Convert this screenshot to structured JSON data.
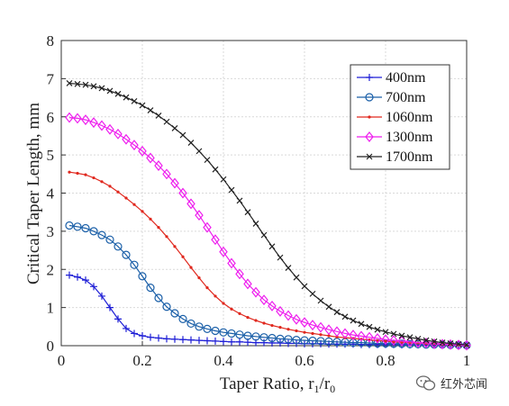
{
  "chart_data": {
    "type": "line",
    "title": "",
    "xlabel": "Taper Ratio, r",
    "xlabel_sub1": "1",
    "xlabel_mid": "/r",
    "xlabel_sub2": "0",
    "ylabel": "Critical Taper Length, mm",
    "xlim": [
      0,
      1
    ],
    "ylim": [
      0,
      8
    ],
    "xticks": [
      0,
      0.2,
      0.4,
      0.6,
      0.8,
      1
    ],
    "xtick_labels": [
      "0",
      "0.2",
      "0.4",
      "0.6",
      "0.8",
      "1"
    ],
    "yticks": [
      0,
      1,
      2,
      3,
      4,
      5,
      6,
      7,
      8
    ],
    "ytick_labels": [
      "0",
      "1",
      "2",
      "3",
      "4",
      "5",
      "6",
      "7",
      "8"
    ],
    "grid": true,
    "legend_position": "top-right",
    "x": [
      0.02,
      0.04,
      0.06,
      0.08,
      0.1,
      0.12,
      0.14,
      0.16,
      0.18,
      0.2,
      0.22,
      0.24,
      0.26,
      0.28,
      0.3,
      0.32,
      0.34,
      0.36,
      0.38,
      0.4,
      0.42,
      0.44,
      0.46,
      0.48,
      0.5,
      0.52,
      0.54,
      0.56,
      0.58,
      0.6,
      0.62,
      0.64,
      0.66,
      0.68,
      0.7,
      0.72,
      0.74,
      0.76,
      0.78,
      0.8,
      0.82,
      0.84,
      0.86,
      0.88,
      0.9,
      0.92,
      0.94,
      0.96,
      0.98,
      1.0
    ],
    "series": [
      {
        "name": "400nm",
        "color": "#1f1fd6",
        "marker": "plus",
        "values": [
          1.85,
          1.8,
          1.72,
          1.55,
          1.3,
          1.0,
          0.7,
          0.45,
          0.32,
          0.26,
          0.22,
          0.2,
          0.18,
          0.17,
          0.16,
          0.15,
          0.14,
          0.13,
          0.12,
          0.11,
          0.1,
          0.1,
          0.09,
          0.08,
          0.08,
          0.07,
          0.07,
          0.06,
          0.06,
          0.05,
          0.05,
          0.05,
          0.04,
          0.04,
          0.04,
          0.04,
          0.03,
          0.03,
          0.03,
          0.03,
          0.03,
          0.02,
          0.02,
          0.02,
          0.02,
          0.02,
          0.02,
          0.01,
          0.01,
          0.01
        ]
      },
      {
        "name": "700nm",
        "color": "#1a5fa8",
        "marker": "circle",
        "values": [
          3.15,
          3.12,
          3.08,
          3.0,
          2.9,
          2.78,
          2.6,
          2.38,
          2.12,
          1.82,
          1.52,
          1.25,
          1.02,
          0.85,
          0.7,
          0.58,
          0.5,
          0.44,
          0.39,
          0.35,
          0.32,
          0.29,
          0.26,
          0.24,
          0.22,
          0.2,
          0.18,
          0.17,
          0.15,
          0.14,
          0.13,
          0.12,
          0.11,
          0.1,
          0.09,
          0.08,
          0.08,
          0.07,
          0.06,
          0.06,
          0.05,
          0.05,
          0.04,
          0.04,
          0.03,
          0.03,
          0.03,
          0.02,
          0.02,
          0.01
        ]
      },
      {
        "name": "1060nm",
        "color": "#e0281e",
        "marker": "dot",
        "values": [
          4.55,
          4.52,
          4.48,
          4.4,
          4.3,
          4.18,
          4.03,
          3.87,
          3.7,
          3.52,
          3.32,
          3.1,
          2.86,
          2.6,
          2.33,
          2.05,
          1.78,
          1.52,
          1.3,
          1.11,
          0.96,
          0.84,
          0.74,
          0.66,
          0.59,
          0.53,
          0.48,
          0.43,
          0.39,
          0.35,
          0.32,
          0.29,
          0.26,
          0.23,
          0.21,
          0.19,
          0.17,
          0.15,
          0.13,
          0.12,
          0.1,
          0.09,
          0.08,
          0.07,
          0.06,
          0.05,
          0.04,
          0.03,
          0.02,
          0.01
        ]
      },
      {
        "name": "1300nm",
        "color": "#ee1fee",
        "marker": "diamond",
        "values": [
          5.98,
          5.96,
          5.92,
          5.85,
          5.77,
          5.67,
          5.55,
          5.41,
          5.26,
          5.1,
          4.92,
          4.72,
          4.5,
          4.26,
          4.0,
          3.72,
          3.42,
          3.1,
          2.78,
          2.46,
          2.16,
          1.88,
          1.62,
          1.4,
          1.2,
          1.04,
          0.9,
          0.79,
          0.69,
          0.61,
          0.54,
          0.48,
          0.42,
          0.37,
          0.32,
          0.28,
          0.25,
          0.22,
          0.19,
          0.16,
          0.14,
          0.12,
          0.1,
          0.08,
          0.07,
          0.05,
          0.04,
          0.03,
          0.02,
          0.01
        ]
      },
      {
        "name": "1700nm",
        "color": "#222222",
        "marker": "cross",
        "values": [
          6.88,
          6.86,
          6.84,
          6.8,
          6.75,
          6.68,
          6.6,
          6.51,
          6.41,
          6.3,
          6.17,
          6.03,
          5.87,
          5.7,
          5.52,
          5.32,
          5.1,
          4.87,
          4.62,
          4.36,
          4.08,
          3.8,
          3.5,
          3.2,
          2.9,
          2.6,
          2.31,
          2.04,
          1.79,
          1.56,
          1.36,
          1.18,
          1.02,
          0.88,
          0.76,
          0.66,
          0.57,
          0.49,
          0.42,
          0.36,
          0.31,
          0.26,
          0.22,
          0.18,
          0.14,
          0.11,
          0.08,
          0.06,
          0.04,
          0.02
        ]
      }
    ]
  },
  "watermark": {
    "text": "红外芯闻",
    "icon": "wechat-bubble-icon"
  }
}
